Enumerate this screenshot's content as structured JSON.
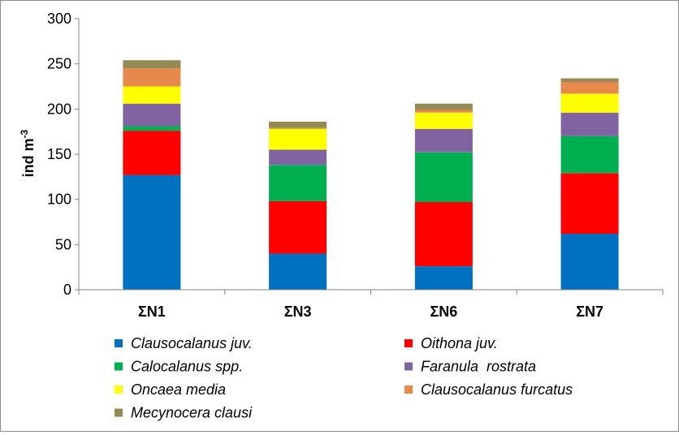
{
  "chart_data": {
    "type": "bar",
    "stacked": true,
    "categories": [
      "ΣΝ1",
      "ΣΝ3",
      "ΣΝ6",
      "ΣΝ7"
    ],
    "ylabel": "ind m",
    "ylabel_superscript": "-3",
    "ylim": [
      0,
      300
    ],
    "yticks": [
      "0",
      "50",
      "100",
      "150",
      "200",
      "250",
      "300"
    ],
    "grid": false,
    "legend_position": "bottom",
    "series": [
      {
        "name": "Clausocalanus juv.",
        "color": "#0070C0",
        "values": [
          127,
          40,
          26,
          62
        ]
      },
      {
        "name": "Oithona juv.",
        "color": "#FF0000",
        "values": [
          49,
          58,
          71,
          67
        ]
      },
      {
        "name": "Calocalanus spp.",
        "color": "#00B050",
        "values": [
          5,
          40,
          55,
          41
        ]
      },
      {
        "name": "Faranula  rostrata",
        "color": "#8064A2",
        "values": [
          25,
          17,
          26,
          26
        ]
      },
      {
        "name": "Oncaea media",
        "color": "#FFFF00",
        "values": [
          19,
          23,
          18,
          21
        ]
      },
      {
        "name": "Clausocalanus furcatus",
        "color": "#E6894A",
        "values": [
          20,
          1,
          3,
          13
        ]
      },
      {
        "name": "Mecynocera clausi",
        "color": "#948A54",
        "values": [
          9,
          7,
          7,
          4
        ]
      }
    ]
  }
}
